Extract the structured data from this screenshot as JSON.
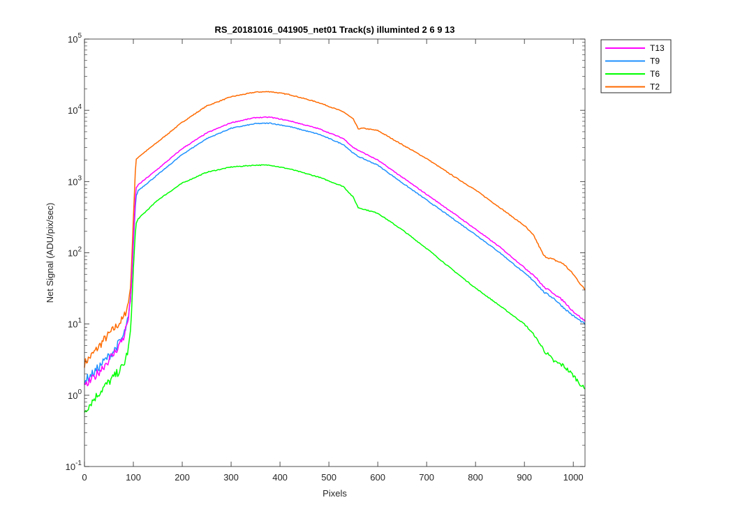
{
  "chart_data": {
    "type": "line",
    "title": "RS_20181016_041905_net01  Track(s) illuminted 2   6   9  13",
    "xlabel": "Pixels",
    "ylabel": "Net Signal (ADU/pix/sec)",
    "xlim": [
      0,
      1024
    ],
    "ylim": [
      0.1,
      100000
    ],
    "yscale": "log",
    "xticks": [
      0,
      100,
      200,
      300,
      400,
      500,
      600,
      700,
      800,
      900,
      1000
    ],
    "xtick_labels": [
      "0",
      "100",
      "200",
      "300",
      "400",
      "500",
      "600",
      "700",
      "800",
      "900",
      "1000"
    ],
    "yticks": [
      0.1,
      1,
      10,
      100,
      1000,
      10000,
      100000
    ],
    "ytick_labels": [
      {
        "base": "10",
        "exp": "-1"
      },
      {
        "base": "10",
        "exp": "0"
      },
      {
        "base": "10",
        "exp": "1"
      },
      {
        "base": "10",
        "exp": "2"
      },
      {
        "base": "10",
        "exp": "3"
      },
      {
        "base": "10",
        "exp": "4"
      },
      {
        "base": "10",
        "exp": "5"
      }
    ],
    "legend_location": "outside-top-right",
    "series": [
      {
        "name": "T13",
        "color": "#FF00FF",
        "x": [
          0,
          20,
          40,
          60,
          80,
          90,
          95,
          100,
          105,
          110,
          150,
          200,
          250,
          300,
          350,
          380,
          420,
          480,
          530,
          550,
          560,
          600,
          650,
          700,
          750,
          800,
          850,
          900,
          920,
          940,
          960,
          980,
          1000,
          1024
        ],
        "y": [
          1.3,
          1.8,
          2.6,
          3.8,
          6.5,
          12,
          25,
          150,
          800,
          900,
          1500,
          2900,
          4800,
          6700,
          7900,
          8000,
          7100,
          5500,
          4000,
          3000,
          2750,
          2000,
          1150,
          660,
          380,
          215,
          120,
          62,
          48,
          33,
          27,
          21,
          15,
          11
        ]
      },
      {
        "name": "T9",
        "color": "#1E90FF",
        "x": [
          0,
          20,
          40,
          60,
          80,
          90,
          95,
          100,
          105,
          110,
          150,
          200,
          250,
          300,
          350,
          380,
          420,
          480,
          530,
          550,
          560,
          600,
          650,
          700,
          750,
          800,
          850,
          900,
          920,
          940,
          960,
          980,
          1000,
          1024
        ],
        "y": [
          1.6,
          2.1,
          3.0,
          4.2,
          6.8,
          12,
          25,
          130,
          600,
          750,
          1250,
          2400,
          4000,
          5600,
          6500,
          6600,
          5900,
          4600,
          3300,
          2500,
          2250,
          1700,
          960,
          550,
          315,
          180,
          100,
          52,
          40,
          28,
          23,
          17,
          13,
          10
        ]
      },
      {
        "name": "T6",
        "color": "#00FF00",
        "x": [
          0,
          20,
          40,
          60,
          80,
          90,
          95,
          100,
          105,
          110,
          150,
          200,
          250,
          300,
          350,
          380,
          420,
          480,
          530,
          550,
          560,
          600,
          650,
          700,
          750,
          800,
          850,
          900,
          920,
          940,
          960,
          980,
          1000,
          1024
        ],
        "y": [
          0.6,
          0.9,
          1.3,
          1.8,
          2.6,
          4.5,
          9,
          60,
          250,
          300,
          550,
          950,
          1350,
          1600,
          1700,
          1700,
          1500,
          1150,
          850,
          600,
          430,
          360,
          210,
          115,
          60,
          32,
          18,
          10,
          7,
          4.3,
          3.0,
          2.6,
          1.9,
          1.2
        ]
      },
      {
        "name": "T2",
        "color": "#FF6A00",
        "x": [
          0,
          20,
          40,
          60,
          80,
          90,
          95,
          100,
          105,
          110,
          150,
          200,
          250,
          300,
          350,
          380,
          420,
          480,
          530,
          550,
          560,
          570,
          600,
          650,
          700,
          750,
          800,
          850,
          900,
          920,
          940,
          960,
          980,
          1000,
          1024
        ],
        "y": [
          2.8,
          4.0,
          6.0,
          8.5,
          12,
          20,
          40,
          300,
          2000,
          2200,
          3600,
          6800,
          11500,
          15500,
          18000,
          18300,
          16600,
          12800,
          9500,
          7500,
          5500,
          5600,
          5200,
          3300,
          2100,
          1250,
          760,
          430,
          240,
          170,
          90,
          80,
          70,
          50,
          30
        ]
      }
    ],
    "legend_order": [
      "T13",
      "T9",
      "T6",
      "T2"
    ]
  }
}
